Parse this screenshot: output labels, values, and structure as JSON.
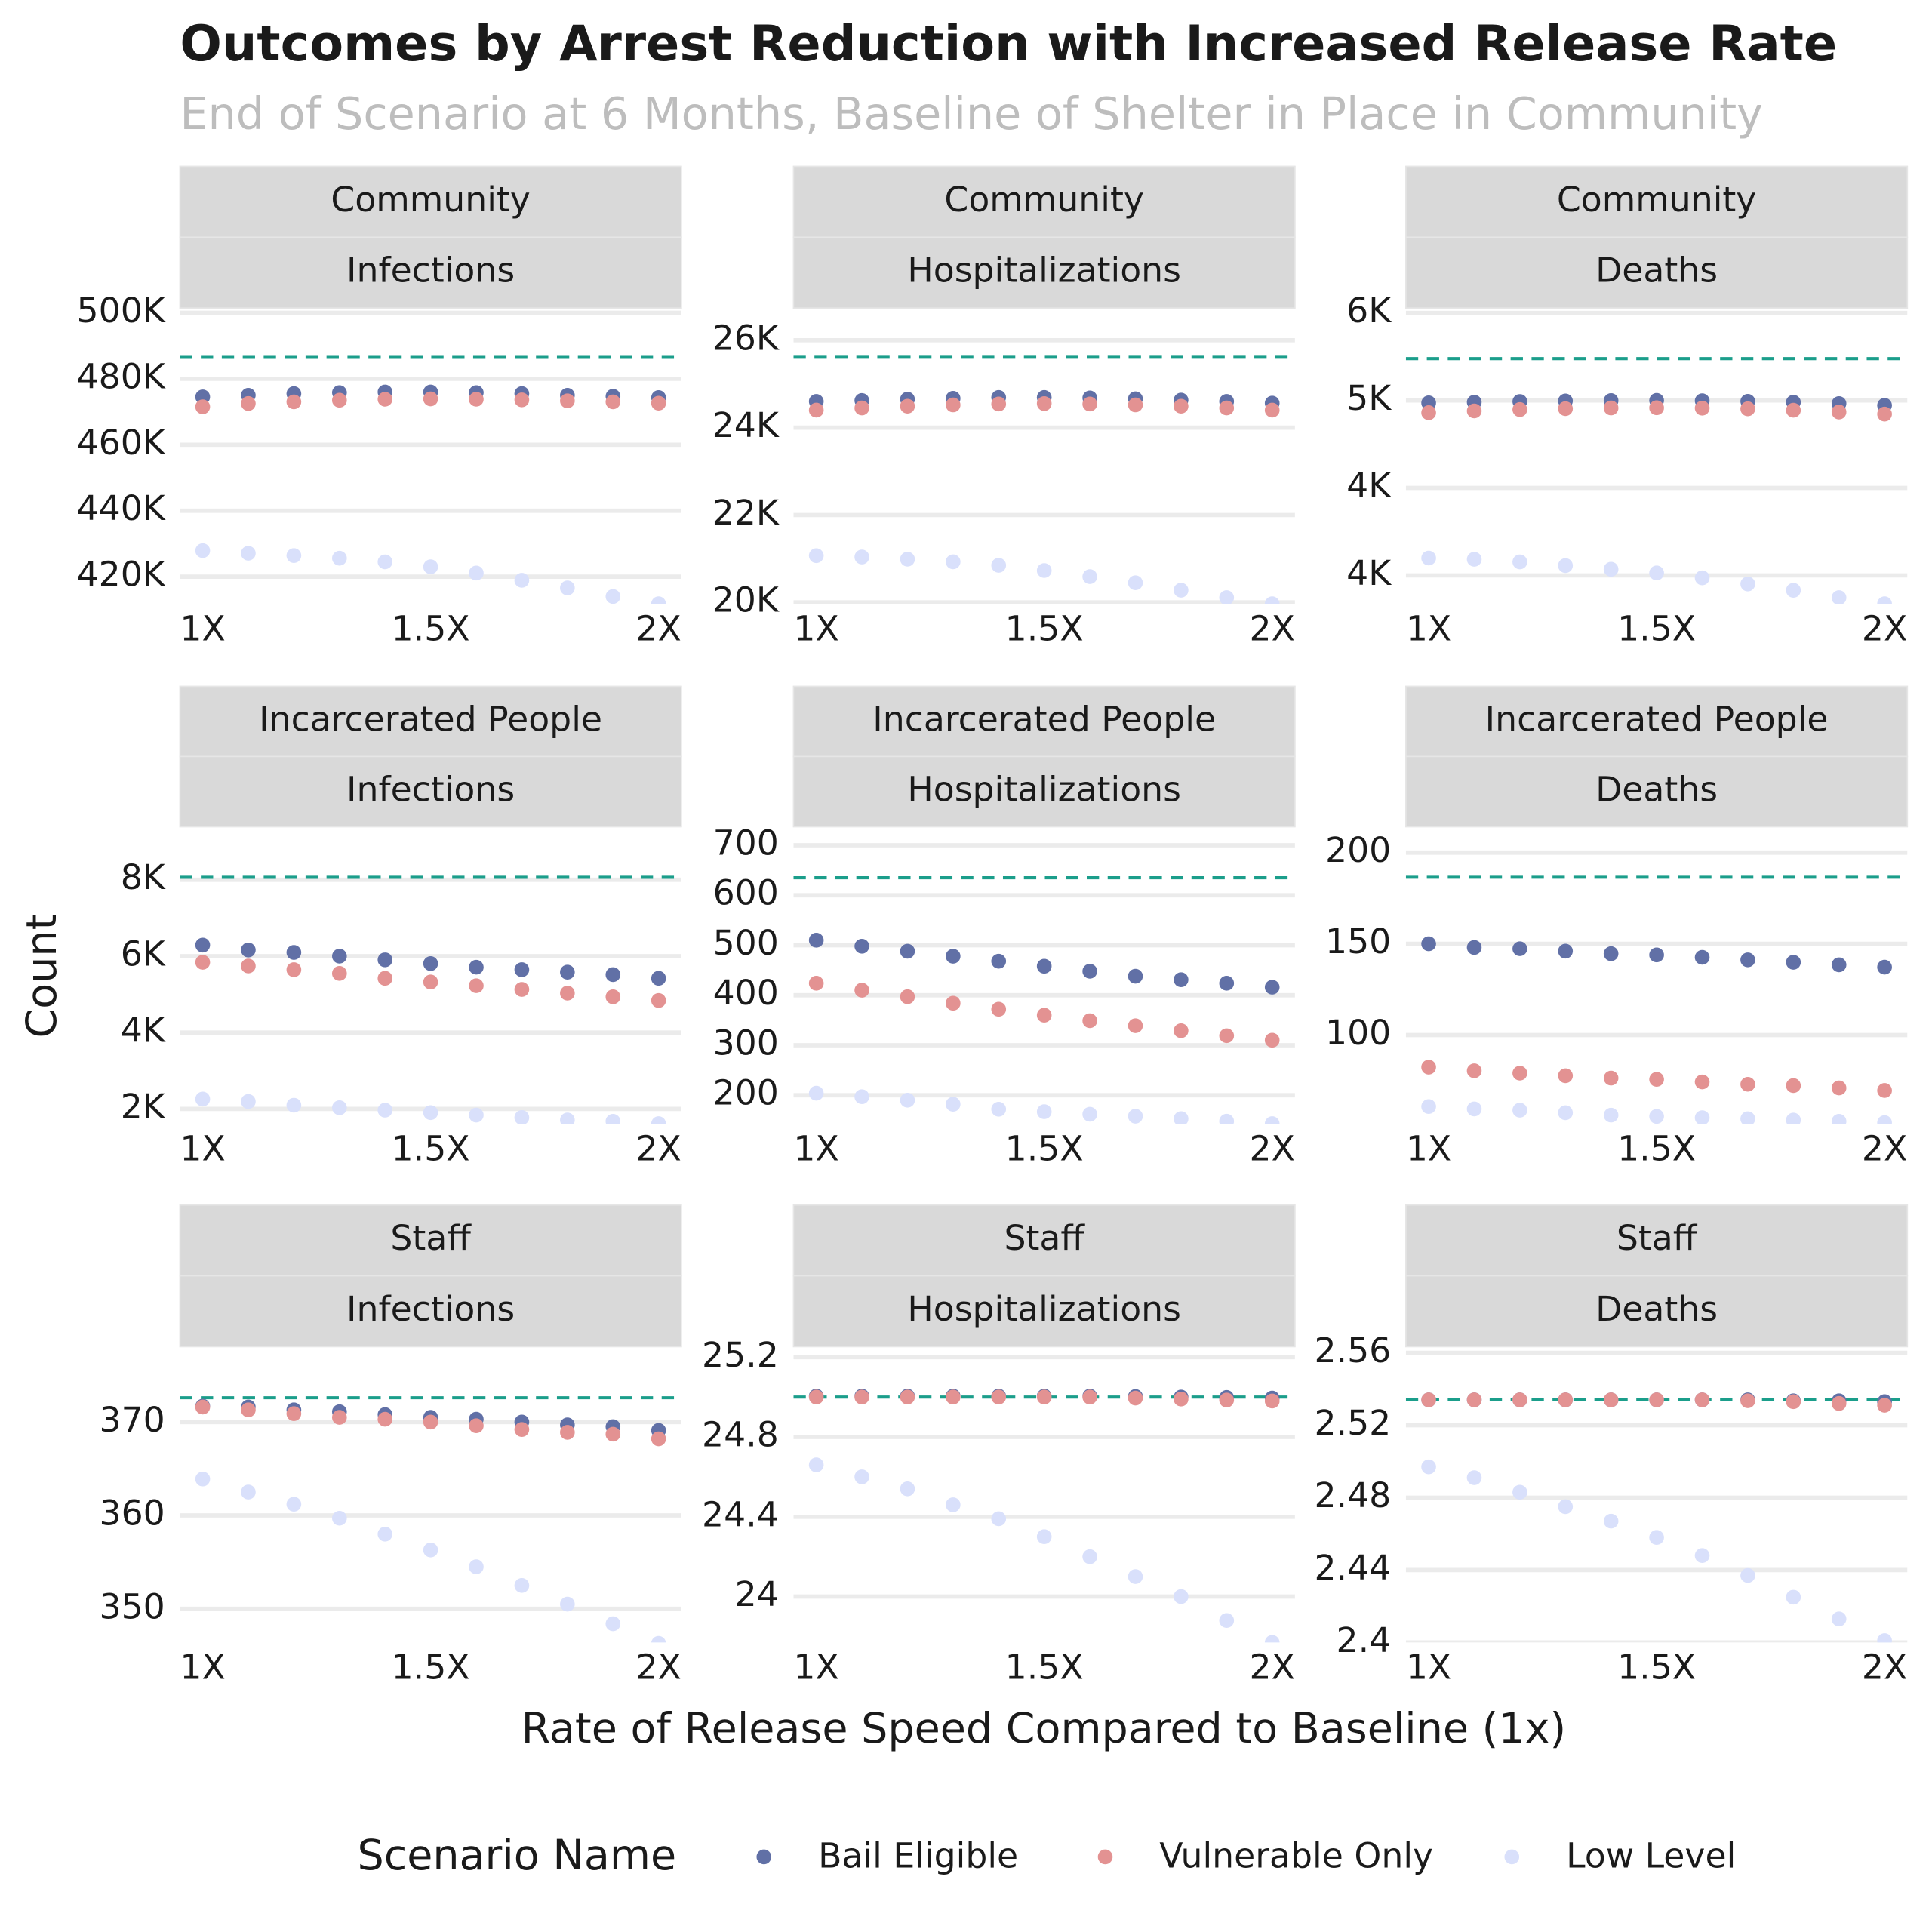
{
  "title": "Outcomes by Arrest Reduction with Increased Release Rate",
  "subtitle": "End of Scenario at 6 Months, Baseline of Shelter in Place in Community",
  "xlabel": "Rate of Release Speed Compared to Baseline (1x)",
  "ylabel": "Count",
  "legend_title": "Scenario Name",
  "legend_position": "bottom",
  "chart_data": [
    {
      "type": "scatter",
      "strip": [
        "Community",
        "Infections"
      ],
      "grid": true,
      "x": [
        1,
        1.1,
        1.2,
        1.3,
        1.4,
        1.5,
        1.6,
        1.7,
        1.8,
        1.9,
        2
      ],
      "xlim": [
        0.95,
        2.05
      ],
      "xticks": [
        {
          "value": 1,
          "label": "1X"
        },
        {
          "value": 1.5,
          "label": "1.5X"
        },
        {
          "value": 2,
          "label": "2X"
        }
      ],
      "ylim": [
        411800,
        500700
      ],
      "yticks": [
        {
          "value": 420000,
          "label": "420K"
        },
        {
          "value": 440000,
          "label": "440K"
        },
        {
          "value": 460000,
          "label": "460K"
        },
        {
          "value": 480000,
          "label": "480K"
        },
        {
          "value": 500000,
          "label": "500K"
        }
      ],
      "baseline": 486500,
      "baseline_color": "#1b9e8b",
      "series": [
        {
          "name": "Bail Eligible",
          "color": "#6170a6",
          "values": [
            474500,
            475000,
            475500,
            475800,
            476000,
            476000,
            475800,
            475500,
            475000,
            474700,
            474300
          ]
        },
        {
          "name": "Vulnerable Only",
          "color": "#e39292",
          "values": [
            471500,
            472500,
            473000,
            473500,
            473800,
            473900,
            473800,
            473600,
            473300,
            473000,
            472600
          ]
        },
        {
          "name": "Low Level",
          "color": "#d9e0fb",
          "values": [
            427900,
            427100,
            426400,
            425600,
            424500,
            423000,
            421100,
            418900,
            416600,
            414000,
            411800
          ]
        }
      ]
    },
    {
      "type": "scatter",
      "strip": [
        "Community",
        "Hospitalizations"
      ],
      "grid": true,
      "x": [
        1,
        1.1,
        1.2,
        1.3,
        1.4,
        1.5,
        1.6,
        1.7,
        1.8,
        1.9,
        2
      ],
      "xlim": [
        0.95,
        2.05
      ],
      "xticks": [
        {
          "value": 1,
          "label": "1X"
        },
        {
          "value": 1.5,
          "label": "1.5X"
        },
        {
          "value": 2,
          "label": "2X"
        }
      ],
      "ylim": [
        19970,
        26680
      ],
      "yticks": [
        {
          "value": 20000,
          "label": "20K"
        },
        {
          "value": 22000,
          "label": "22K"
        },
        {
          "value": 24000,
          "label": "24K"
        },
        {
          "value": 26000,
          "label": "26K"
        }
      ],
      "baseline": 25610,
      "baseline_color": "#1b9e8b",
      "series": [
        {
          "name": "Bail Eligible",
          "color": "#6170a6",
          "values": [
            24600,
            24620,
            24650,
            24670,
            24690,
            24690,
            24680,
            24660,
            24630,
            24600,
            24560
          ]
        },
        {
          "name": "Vulnerable Only",
          "color": "#e39292",
          "values": [
            24400,
            24450,
            24490,
            24520,
            24540,
            24550,
            24540,
            24520,
            24490,
            24450,
            24400
          ]
        },
        {
          "name": "Low Level",
          "color": "#d9e0fb",
          "values": [
            21070,
            21040,
            20990,
            20930,
            20850,
            20730,
            20590,
            20450,
            20280,
            20110,
            19970
          ]
        }
      ]
    },
    {
      "type": "scatter",
      "strip": [
        "Community",
        "Deaths"
      ],
      "grid": true,
      "x": [
        1,
        1.1,
        1.2,
        1.3,
        1.4,
        1.5,
        1.6,
        1.7,
        1.8,
        1.9,
        2
      ],
      "xlim": [
        0.95,
        2.05
      ],
      "xticks": [
        {
          "value": 1,
          "label": "1X"
        },
        {
          "value": 1.5,
          "label": "1.5X"
        },
        {
          "value": 2,
          "label": "2X"
        }
      ],
      "ylim": [
        3838,
        5514
      ],
      "yticks": [
        {
          "value": 4000,
          "label": "4K"
        },
        {
          "value": 4500,
          "label": "4K"
        },
        {
          "value": 5000,
          "label": "5K"
        },
        {
          "value": 5500,
          "label": "6K"
        }
      ],
      "baseline": 5239,
      "baseline_color": "#1b9e8b",
      "series": [
        {
          "name": "Bail Eligible",
          "color": "#6170a6",
          "values": [
            4986,
            4990,
            4994,
            4997,
            4999,
            5000,
            4998,
            4995,
            4990,
            4982,
            4972
          ]
        },
        {
          "name": "Vulnerable Only",
          "color": "#e39292",
          "values": [
            4930,
            4940,
            4948,
            4953,
            4957,
            4958,
            4956,
            4952,
            4944,
            4934,
            4922
          ]
        },
        {
          "name": "Low Level",
          "color": "#d9e0fb",
          "values": [
            4099,
            4092,
            4077,
            4056,
            4035,
            4014,
            3986,
            3951,
            3915,
            3873,
            3838
          ]
        }
      ]
    },
    {
      "type": "scatter",
      "strip": [
        "Incarcerated People",
        "Infections"
      ],
      "grid": true,
      "x": [
        1,
        1.1,
        1.2,
        1.3,
        1.4,
        1.5,
        1.6,
        1.7,
        1.8,
        1.9,
        2
      ],
      "xlim": [
        0.95,
        2.05
      ],
      "xticks": [
        {
          "value": 1,
          "label": "1X"
        },
        {
          "value": 1.5,
          "label": "1.5X"
        },
        {
          "value": 2,
          "label": "2X"
        }
      ],
      "ylim": [
        1613,
        9323
      ],
      "yticks": [
        {
          "value": 2000,
          "label": "2K"
        },
        {
          "value": 4000,
          "label": "4K"
        },
        {
          "value": 6000,
          "label": "6K"
        },
        {
          "value": 8000,
          "label": "8K"
        }
      ],
      "baseline": 8065,
      "baseline_color": "#1b9e8b",
      "series": [
        {
          "name": "Bail Eligible",
          "color": "#6170a6",
          "values": [
            6290,
            6161,
            6097,
            6000,
            5903,
            5806,
            5710,
            5645,
            5581,
            5516,
            5419
          ]
        },
        {
          "name": "Vulnerable Only",
          "color": "#e39292",
          "values": [
            5839,
            5742,
            5645,
            5548,
            5419,
            5323,
            5226,
            5129,
            5032,
            4935,
            4839
          ]
        },
        {
          "name": "Low Level",
          "color": "#d9e0fb",
          "values": [
            2258,
            2194,
            2097,
            2032,
            1968,
            1903,
            1839,
            1774,
            1710,
            1677,
            1613
          ]
        }
      ]
    },
    {
      "type": "scatter",
      "strip": [
        "Incarcerated People",
        "Hospitalizations"
      ],
      "grid": true,
      "x": [
        1,
        1.1,
        1.2,
        1.3,
        1.4,
        1.5,
        1.6,
        1.7,
        1.8,
        1.9,
        2
      ],
      "xlim": [
        0.95,
        2.05
      ],
      "xticks": [
        {
          "value": 1,
          "label": "1X"
        },
        {
          "value": 1.5,
          "label": "1.5X"
        },
        {
          "value": 2,
          "label": "2X"
        }
      ],
      "ylim": [
        143,
        732
      ],
      "yticks": [
        200,
        300,
        400,
        500,
        600,
        700
      ],
      "baseline": 635,
      "baseline_color": "#1b9e8b",
      "series": [
        {
          "name": "Bail Eligible",
          "color": "#6170a6",
          "values": [
            510,
            498,
            488,
            478,
            468,
            458,
            448,
            438,
            431,
            424,
            416
          ]
        },
        {
          "name": "Vulnerable Only",
          "color": "#e39292",
          "values": [
            424,
            410,
            397,
            384,
            372,
            360,
            349,
            339,
            329,
            319,
            310
          ]
        },
        {
          "name": "Low Level",
          "color": "#d9e0fb",
          "values": [
            204,
            197,
            190,
            182,
            172,
            167,
            162,
            158,
            153,
            148,
            143
          ]
        }
      ]
    },
    {
      "type": "scatter",
      "strip": [
        "Incarcerated People",
        "Deaths"
      ],
      "grid": true,
      "x": [
        1,
        1.1,
        1.2,
        1.3,
        1.4,
        1.5,
        1.6,
        1.7,
        1.8,
        1.9,
        2
      ],
      "xlim": [
        0.95,
        2.05
      ],
      "xticks": [
        {
          "value": 1,
          "label": "1X"
        },
        {
          "value": 1.5,
          "label": "1.5X"
        },
        {
          "value": 2,
          "label": "2X"
        }
      ],
      "ylim": [
        51.4,
        212.8
      ],
      "yticks": [
        100,
        150,
        200
      ],
      "baseline": 186.5,
      "baseline_color": "#1b9e8b",
      "series": [
        {
          "name": "Bail Eligible",
          "color": "#6170a6",
          "values": [
            150,
            148,
            147.3,
            146,
            144.6,
            143.9,
            142.6,
            141.2,
            139.9,
            138.5,
            137.2
          ]
        },
        {
          "name": "Vulnerable Only",
          "color": "#e39292",
          "values": [
            82.4,
            80.4,
            79.1,
            77.7,
            76.4,
            75.7,
            74.3,
            73,
            72.3,
            71,
            69.6
          ]
        },
        {
          "name": "Low Level",
          "color": "#d9e0fb",
          "values": [
            60.8,
            59.5,
            58.8,
            57.4,
            56.1,
            55.4,
            54.7,
            54.1,
            53.4,
            52.7,
            52
          ]
        }
      ]
    },
    {
      "type": "scatter",
      "strip": [
        "Staff",
        "Infections"
      ],
      "grid": true,
      "x": [
        1,
        1.1,
        1.2,
        1.3,
        1.4,
        1.5,
        1.6,
        1.7,
        1.8,
        1.9,
        2
      ],
      "xlim": [
        0.95,
        2.05
      ],
      "xticks": [
        {
          "value": 1,
          "label": "1X"
        },
        {
          "value": 1.5,
          "label": "1.5X"
        },
        {
          "value": 2,
          "label": "2X"
        }
      ],
      "ylim": [
        346.4,
        377.8
      ],
      "yticks": [
        350,
        360,
        370
      ],
      "baseline": 372.6,
      "baseline_color": "#1b9e8b",
      "series": [
        {
          "name": "Bail Eligible",
          "color": "#6170a6",
          "values": [
            371.7,
            371.6,
            371.3,
            371.1,
            370.8,
            370.5,
            370.3,
            370,
            369.7,
            369.5,
            369.1
          ]
        },
        {
          "name": "Vulnerable Only",
          "color": "#e39292",
          "values": [
            371.6,
            371.3,
            370.9,
            370.5,
            370.3,
            370,
            369.6,
            369.2,
            368.9,
            368.7,
            368.2
          ]
        },
        {
          "name": "Low Level",
          "color": "#d9e0fb",
          "values": [
            363.9,
            362.5,
            361.2,
            359.7,
            358,
            356.3,
            354.5,
            352.5,
            350.5,
            348.4,
            346.3
          ]
        }
      ]
    },
    {
      "type": "scatter",
      "strip": [
        "Staff",
        "Hospitalizations"
      ],
      "grid": true,
      "x": [
        1,
        1.1,
        1.2,
        1.3,
        1.4,
        1.5,
        1.6,
        1.7,
        1.8,
        1.9,
        2
      ],
      "xlim": [
        0.95,
        2.05
      ],
      "xticks": [
        {
          "value": 1,
          "label": "1X"
        },
        {
          "value": 1.5,
          "label": "1.5X"
        },
        {
          "value": 2,
          "label": "2X"
        }
      ],
      "ylim": [
        23.77,
        25.24
      ],
      "yticks": [
        24,
        24.4,
        24.8,
        25.2
      ],
      "baseline": 25,
      "baseline_color": "#1b9e8b",
      "series": [
        {
          "name": "Bail Eligible",
          "color": "#6170a6",
          "values": [
            25.005,
            25.005,
            25.005,
            25.005,
            25.005,
            25.005,
            25.005,
            25.003,
            25,
            24.998,
            24.995
          ]
        },
        {
          "name": "Vulnerable Only",
          "color": "#e39292",
          "values": [
            25,
            25,
            25,
            25,
            25,
            25,
            25,
            24.995,
            24.99,
            24.985,
            24.98
          ]
        },
        {
          "name": "Low Level",
          "color": "#d9e0fb",
          "values": [
            24.66,
            24.6,
            24.54,
            24.46,
            24.39,
            24.3,
            24.2,
            24.1,
            24,
            23.88,
            23.77
          ]
        }
      ]
    },
    {
      "type": "scatter",
      "strip": [
        "Staff",
        "Deaths"
      ],
      "grid": true,
      "x": [
        1,
        1.1,
        1.2,
        1.3,
        1.4,
        1.5,
        1.6,
        1.7,
        1.8,
        1.9,
        2
      ],
      "xlim": [
        0.95,
        2.05
      ],
      "xticks": [
        {
          "value": 1,
          "label": "1X"
        },
        {
          "value": 1.5,
          "label": "1.5X"
        },
        {
          "value": 2,
          "label": "2X"
        }
      ],
      "ylim": [
        2.4,
        2.562
      ],
      "yticks": [
        2.4,
        2.44,
        2.48,
        2.52,
        2.56
      ],
      "baseline": 2.534,
      "baseline_color": "#1b9e8b",
      "series": [
        {
          "name": "Bail Eligible",
          "color": "#6170a6",
          "values": [
            2.534,
            2.534,
            2.534,
            2.534,
            2.534,
            2.534,
            2.534,
            2.534,
            2.5335,
            2.5335,
            2.533
          ]
        },
        {
          "name": "Vulnerable Only",
          "color": "#e39292",
          "values": [
            2.534,
            2.534,
            2.534,
            2.534,
            2.534,
            2.534,
            2.534,
            2.5335,
            2.533,
            2.532,
            2.531
          ]
        },
        {
          "name": "Low Level",
          "color": "#d9e0fb",
          "values": [
            2.497,
            2.491,
            2.483,
            2.475,
            2.467,
            2.458,
            2.448,
            2.437,
            2.425,
            2.413,
            2.401
          ]
        }
      ]
    }
  ]
}
